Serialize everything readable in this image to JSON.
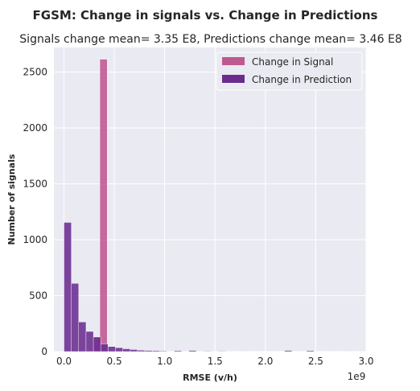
{
  "chart_data": {
    "type": "bar",
    "suptitle": "FGSM: Change in signals vs. Change in Predictions",
    "title": "Signals change mean= 3.35 E8, Predictions change mean= 3.46 E8",
    "xlabel": "RMSE (v/h)",
    "ylabel": "Number of signals",
    "x_offset_label": "1e9",
    "xlim": [
      -0.1,
      3.0
    ],
    "ylim": [
      0,
      2720
    ],
    "x_scale": 1000000000.0,
    "xticks": [
      0.0,
      0.5,
      1.0,
      1.5,
      2.0,
      2.5,
      3.0
    ],
    "xtick_labels": [
      "0.0",
      "0.5",
      "1.0",
      "1.5",
      "2.0",
      "2.5",
      "3.0"
    ],
    "yticks": [
      0,
      500,
      1000,
      1500,
      2000,
      2500
    ],
    "ytick_labels": [
      "0",
      "500",
      "1000",
      "1500",
      "2000",
      "2500"
    ],
    "grid": true,
    "legend_position": "top-right",
    "bin_width": 0.073,
    "series": [
      {
        "name": "Change in Signal",
        "color": "#c0578f",
        "bins": [
          {
            "x0": 0.283,
            "count": 130
          },
          {
            "x0": 0.356,
            "count": 2615
          }
        ]
      },
      {
        "name": "Change in Prediction",
        "color": "#6a2c8f",
        "bins": [
          {
            "x0": 0.0,
            "count": 1155
          },
          {
            "x0": 0.073,
            "count": 610
          },
          {
            "x0": 0.146,
            "count": 265
          },
          {
            "x0": 0.219,
            "count": 180
          },
          {
            "x0": 0.292,
            "count": 130
          },
          {
            "x0": 0.365,
            "count": 68
          },
          {
            "x0": 0.438,
            "count": 45
          },
          {
            "x0": 0.511,
            "count": 35
          },
          {
            "x0": 0.584,
            "count": 25
          },
          {
            "x0": 0.657,
            "count": 18
          },
          {
            "x0": 0.73,
            "count": 12
          },
          {
            "x0": 0.803,
            "count": 10
          },
          {
            "x0": 0.876,
            "count": 8
          },
          {
            "x0": 0.949,
            "count": 6
          },
          {
            "x0": 1.095,
            "count": 8
          },
          {
            "x0": 1.241,
            "count": 10
          },
          {
            "x0": 1.387,
            "count": 4
          },
          {
            "x0": 1.533,
            "count": 4
          },
          {
            "x0": 1.679,
            "count": 3
          },
          {
            "x0": 1.825,
            "count": 3
          },
          {
            "x0": 1.971,
            "count": 3
          },
          {
            "x0": 2.117,
            "count": 3
          },
          {
            "x0": 2.19,
            "count": 10
          },
          {
            "x0": 2.336,
            "count": 3
          },
          {
            "x0": 2.409,
            "count": 8
          },
          {
            "x0": 2.555,
            "count": 3
          },
          {
            "x0": 2.701,
            "count": 3
          },
          {
            "x0": 2.847,
            "count": 3
          }
        ]
      }
    ]
  }
}
